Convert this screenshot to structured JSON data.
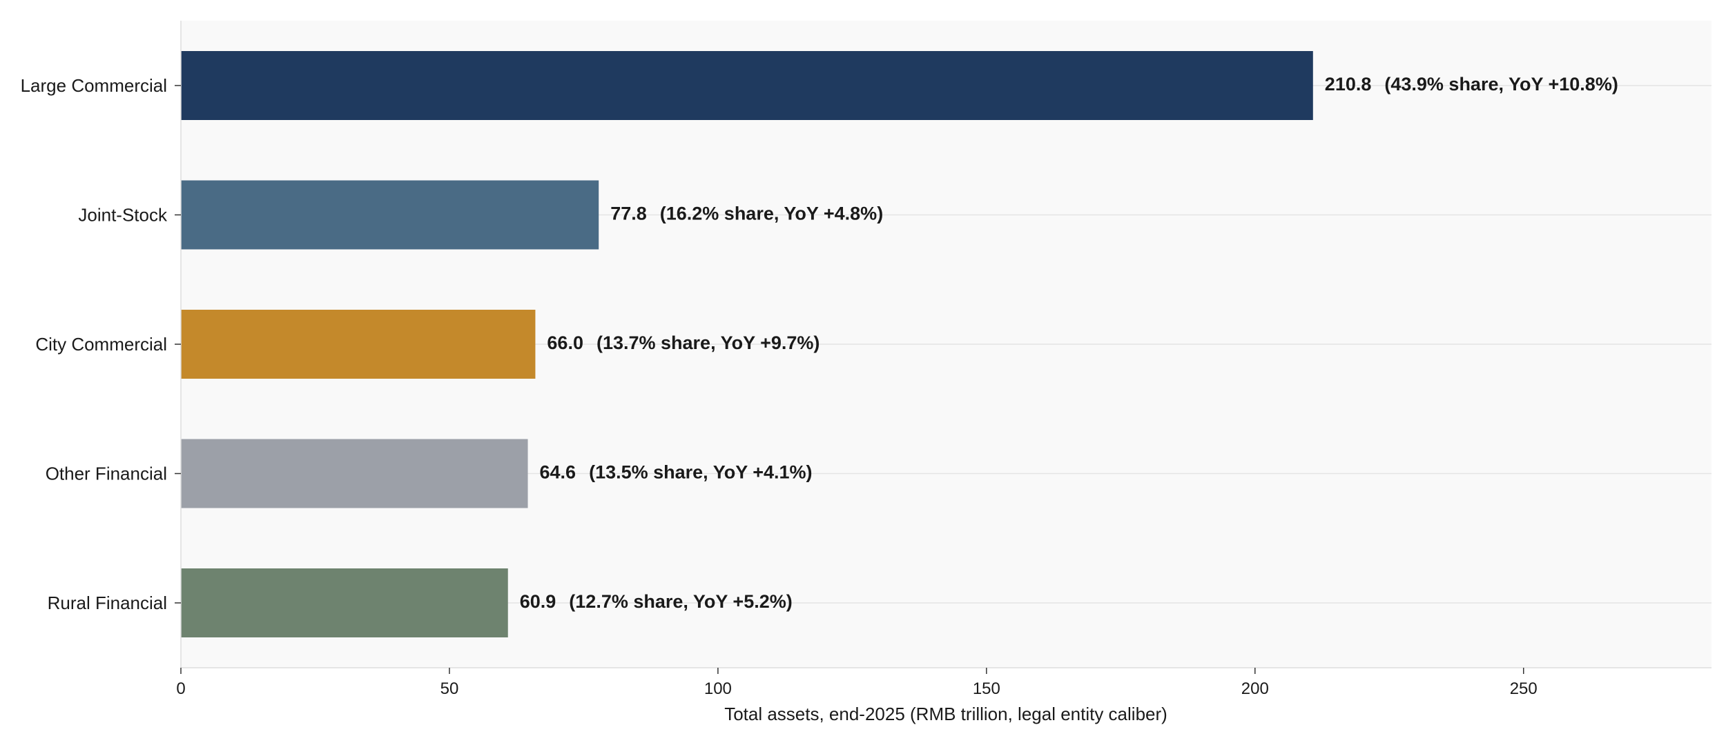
{
  "chart_data": {
    "type": "bar",
    "orientation": "horizontal",
    "categories": [
      "Large Commercial",
      "Joint-Stock",
      "City Commercial",
      "Other Financial",
      "Rural Financial"
    ],
    "values": [
      210.8,
      77.8,
      66.0,
      64.6,
      60.9
    ],
    "value_labels": [
      "210.8",
      "77.8",
      "66.0",
      "64.6",
      "60.9"
    ],
    "annotations": [
      "(43.9% share, YoY +10.8%)",
      "(16.2% share, YoY +4.8%)",
      "(13.7% share, YoY +9.7%)",
      "(13.5% share, YoY +4.1%)",
      "(12.7% share, YoY +5.2%)"
    ],
    "colors": [
      "#1f3a5f",
      "#4a6b85",
      "#c4892b",
      "#9ca0a8",
      "#6e836f"
    ],
    "xlabel": "Total assets, end-2025 (RMB trillion, legal entity caliber)",
    "ylabel": "",
    "xlim": [
      0,
      285
    ],
    "xticks": [
      0,
      50,
      100,
      150,
      200,
      250
    ],
    "xtick_labels": [
      "0",
      "50",
      "100",
      "150",
      "200",
      "250"
    ],
    "grid": "horizontal lines at each category",
    "legend": "none",
    "background_color": "#f9f9f9"
  }
}
